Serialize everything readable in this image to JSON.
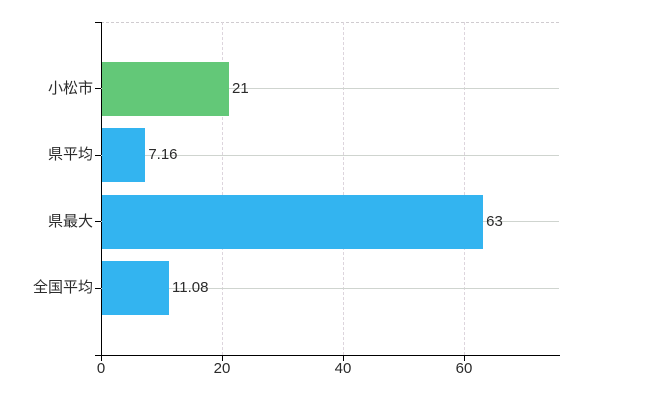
{
  "chart_data": {
    "type": "bar",
    "orientation": "horizontal",
    "title": "",
    "xlabel": "",
    "ylabel": "",
    "categories": [
      "小松市",
      "県平均",
      "県最大",
      "全国平均"
    ],
    "values": [
      21,
      7.16,
      63,
      11.08
    ],
    "value_labels": [
      "21",
      "7.16",
      "63",
      "11.08"
    ],
    "bar_colors": [
      "#63c878",
      "#33b4f0",
      "#33b4f0",
      "#33b4f0"
    ],
    "highlight_category": "小松市",
    "x_ticks": [
      "0",
      "20",
      "40",
      "60"
    ],
    "x_tick_values": [
      0,
      20,
      40,
      60
    ],
    "xlim": [
      0,
      75.7
    ],
    "grid": true,
    "legend": "none"
  },
  "style": {
    "background": "#ffffff",
    "bar_blue": "#33b4f0",
    "bar_green": "#63c878",
    "axis_color": "#000000",
    "text_color": "#2b2b2b",
    "grid_horizontal_color": "#cfd4cf",
    "grid_vertical_color": "#ddd5dd",
    "plot_border_dash_color": "#d0ccd0"
  }
}
